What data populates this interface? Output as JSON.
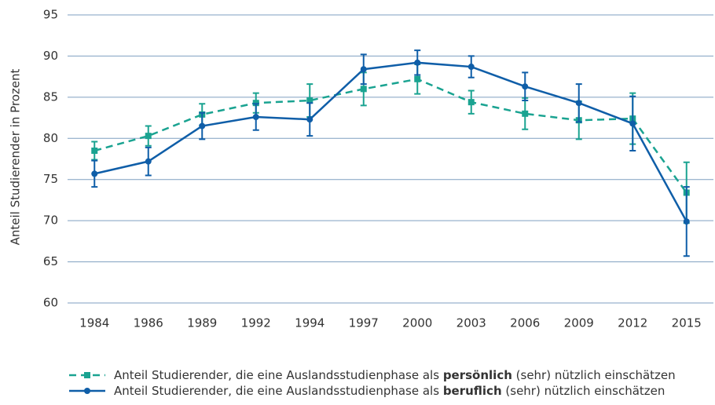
{
  "chart_data": {
    "type": "line",
    "ylabel": "Anteil Studierender in Prozent",
    "categories": [
      "1984",
      "1986",
      "1989",
      "1992",
      "1994",
      "1997",
      "2000",
      "2003",
      "2006",
      "2009",
      "2012",
      "2015"
    ],
    "series": [
      {
        "name": "Anteil Studierender, die eine Auslandsstudienphase als persönlich (sehr) nützlich einschätzen",
        "emphasis": "persönlich",
        "color": "#1aa391",
        "dashed": true,
        "marker": "square",
        "values": [
          78.5,
          80.3,
          82.9,
          84.3,
          84.6,
          86.0,
          87.2,
          84.4,
          83.0,
          82.2,
          82.4,
          73.4
        ],
        "errors": [
          1.1,
          1.2,
          1.3,
          1.2,
          2.0,
          2.0,
          1.8,
          1.4,
          1.9,
          2.3,
          3.1,
          3.7
        ]
      },
      {
        "name": "Anteil Studierender, die eine Auslandsstudienphase als beruflich (sehr) nützlich einschätzen",
        "emphasis": "beruflich",
        "color": "#0f5ea8",
        "dashed": false,
        "marker": "circle",
        "values": [
          75.7,
          77.2,
          81.5,
          82.6,
          82.3,
          88.4,
          89.2,
          88.7,
          86.3,
          84.3,
          81.8,
          69.9
        ],
        "errors": [
          1.6,
          1.7,
          1.6,
          1.6,
          2.0,
          1.8,
          1.5,
          1.3,
          1.7,
          2.3,
          3.3,
          4.2
        ]
      }
    ],
    "ylim": [
      60,
      95
    ],
    "yticks": [
      60,
      65,
      70,
      75,
      80,
      85,
      90,
      95
    ],
    "grid": true
  }
}
